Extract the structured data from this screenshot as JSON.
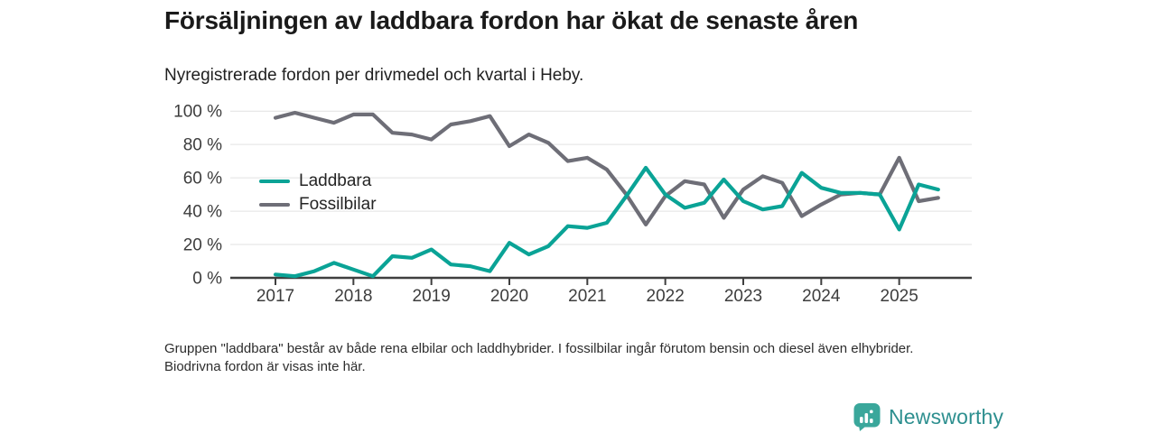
{
  "header": {
    "title": "Försäljningen av laddbara fordon har ökat de senaste åren",
    "subtitle": "Nyregistrerade fordon per drivmedel och kvartal i Heby."
  },
  "chart_data": {
    "type": "line",
    "x": [
      "2017 Q1",
      "2017 Q2",
      "2017 Q3",
      "2017 Q4",
      "2018 Q1",
      "2018 Q2",
      "2018 Q3",
      "2018 Q4",
      "2019 Q1",
      "2019 Q2",
      "2019 Q3",
      "2019 Q4",
      "2020 Q1",
      "2020 Q2",
      "2020 Q3",
      "2020 Q4",
      "2021 Q1",
      "2021 Q2",
      "2021 Q3",
      "2021 Q4",
      "2022 Q1",
      "2022 Q2",
      "2022 Q3",
      "2022 Q4",
      "2023 Q1",
      "2023 Q2",
      "2023 Q3",
      "2023 Q4",
      "2024 Q1",
      "2024 Q2",
      "2024 Q3",
      "2024 Q4",
      "2025 Q1",
      "2025 Q2",
      "2025 Q3"
    ],
    "series": [
      {
        "name": "Laddbara",
        "color": "#0aa396",
        "values": [
          2,
          1,
          4,
          9,
          5,
          1,
          13,
          12,
          17,
          8,
          7,
          4,
          21,
          14,
          19,
          31,
          30,
          33,
          49,
          66,
          50,
          42,
          45,
          59,
          46,
          41,
          43,
          63,
          54,
          51,
          51,
          50,
          29,
          56,
          53
        ]
      },
      {
        "name": "Fossilbilar",
        "color": "#6e6e77",
        "values": [
          96,
          99,
          96,
          93,
          98,
          98,
          87,
          86,
          83,
          92,
          94,
          97,
          79,
          86,
          81,
          70,
          72,
          65,
          50,
          32,
          49,
          58,
          56,
          36,
          53,
          61,
          57,
          37,
          44,
          50,
          51,
          50,
          72,
          46,
          48
        ]
      }
    ],
    "x_tick_labels": [
      "2017",
      "2018",
      "2019",
      "2020",
      "2021",
      "2022",
      "2023",
      "2024",
      "2025"
    ],
    "y_tick_labels": [
      "0 %",
      "20 %",
      "40 %",
      "60 %",
      "80 %",
      "100 %"
    ],
    "y_tick_values": [
      0,
      20,
      40,
      60,
      80,
      100
    ],
    "ylim": [
      0,
      100
    ],
    "grid": "horizontal",
    "legend_position": "inside-left",
    "unit": "%"
  },
  "footer": {
    "note": "Gruppen \"laddbara\" består av både rena elbilar och laddhybrider. I fossilbilar ingår förutom bensin och diesel även elhybrider. Biodrivna fordon är visas inte här.",
    "brand": "Newsworthy"
  },
  "colors": {
    "laddbara": "#0aa396",
    "fossilbilar": "#6e6e77",
    "axis": "#3f3f3f",
    "gridline": "#e2e2e2",
    "tick_label": "#3d3d3d",
    "brand_icon": "#3aa79b",
    "brand_text": "#2d8f8f"
  },
  "icons": {
    "brand_icon": "bar-chart-bubble-icon"
  }
}
